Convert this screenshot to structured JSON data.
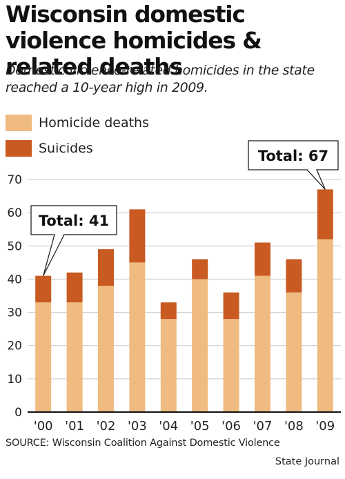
{
  "title": "Wisconsin domestic violence homicides & related deaths",
  "subtitle": "Domestic violence-related homicides in the state reached a 10-year high in 2009.",
  "source": "SOURCE: Wisconsin Coalition Against Domestic Violence",
  "credit": "State Journal",
  "colors": {
    "homicide": "#f0bb80",
    "suicide": "#c85a22",
    "grid": "#c8c8c8",
    "axis": "#111111"
  },
  "chart_data": {
    "type": "bar",
    "stacked": true,
    "categories": [
      "'00",
      "'01",
      "'02",
      "'03",
      "'04",
      "'05",
      "'06",
      "'07",
      "'08",
      "'09"
    ],
    "series": [
      {
        "name": "Homicide deaths",
        "values": [
          33,
          33,
          38,
          45,
          28,
          40,
          28,
          41,
          36,
          52
        ]
      },
      {
        "name": "Suicides",
        "values": [
          8,
          9,
          11,
          16,
          5,
          6,
          8,
          10,
          10,
          15
        ]
      }
    ],
    "ylim": [
      0,
      70
    ],
    "yticks": [
      0,
      10,
      20,
      30,
      40,
      50,
      60,
      70
    ],
    "grid": true,
    "legend": "top-left",
    "annotations": [
      {
        "text": "Total: 41",
        "category": "'00"
      },
      {
        "text": "Total: 67",
        "category": "'09"
      }
    ]
  }
}
